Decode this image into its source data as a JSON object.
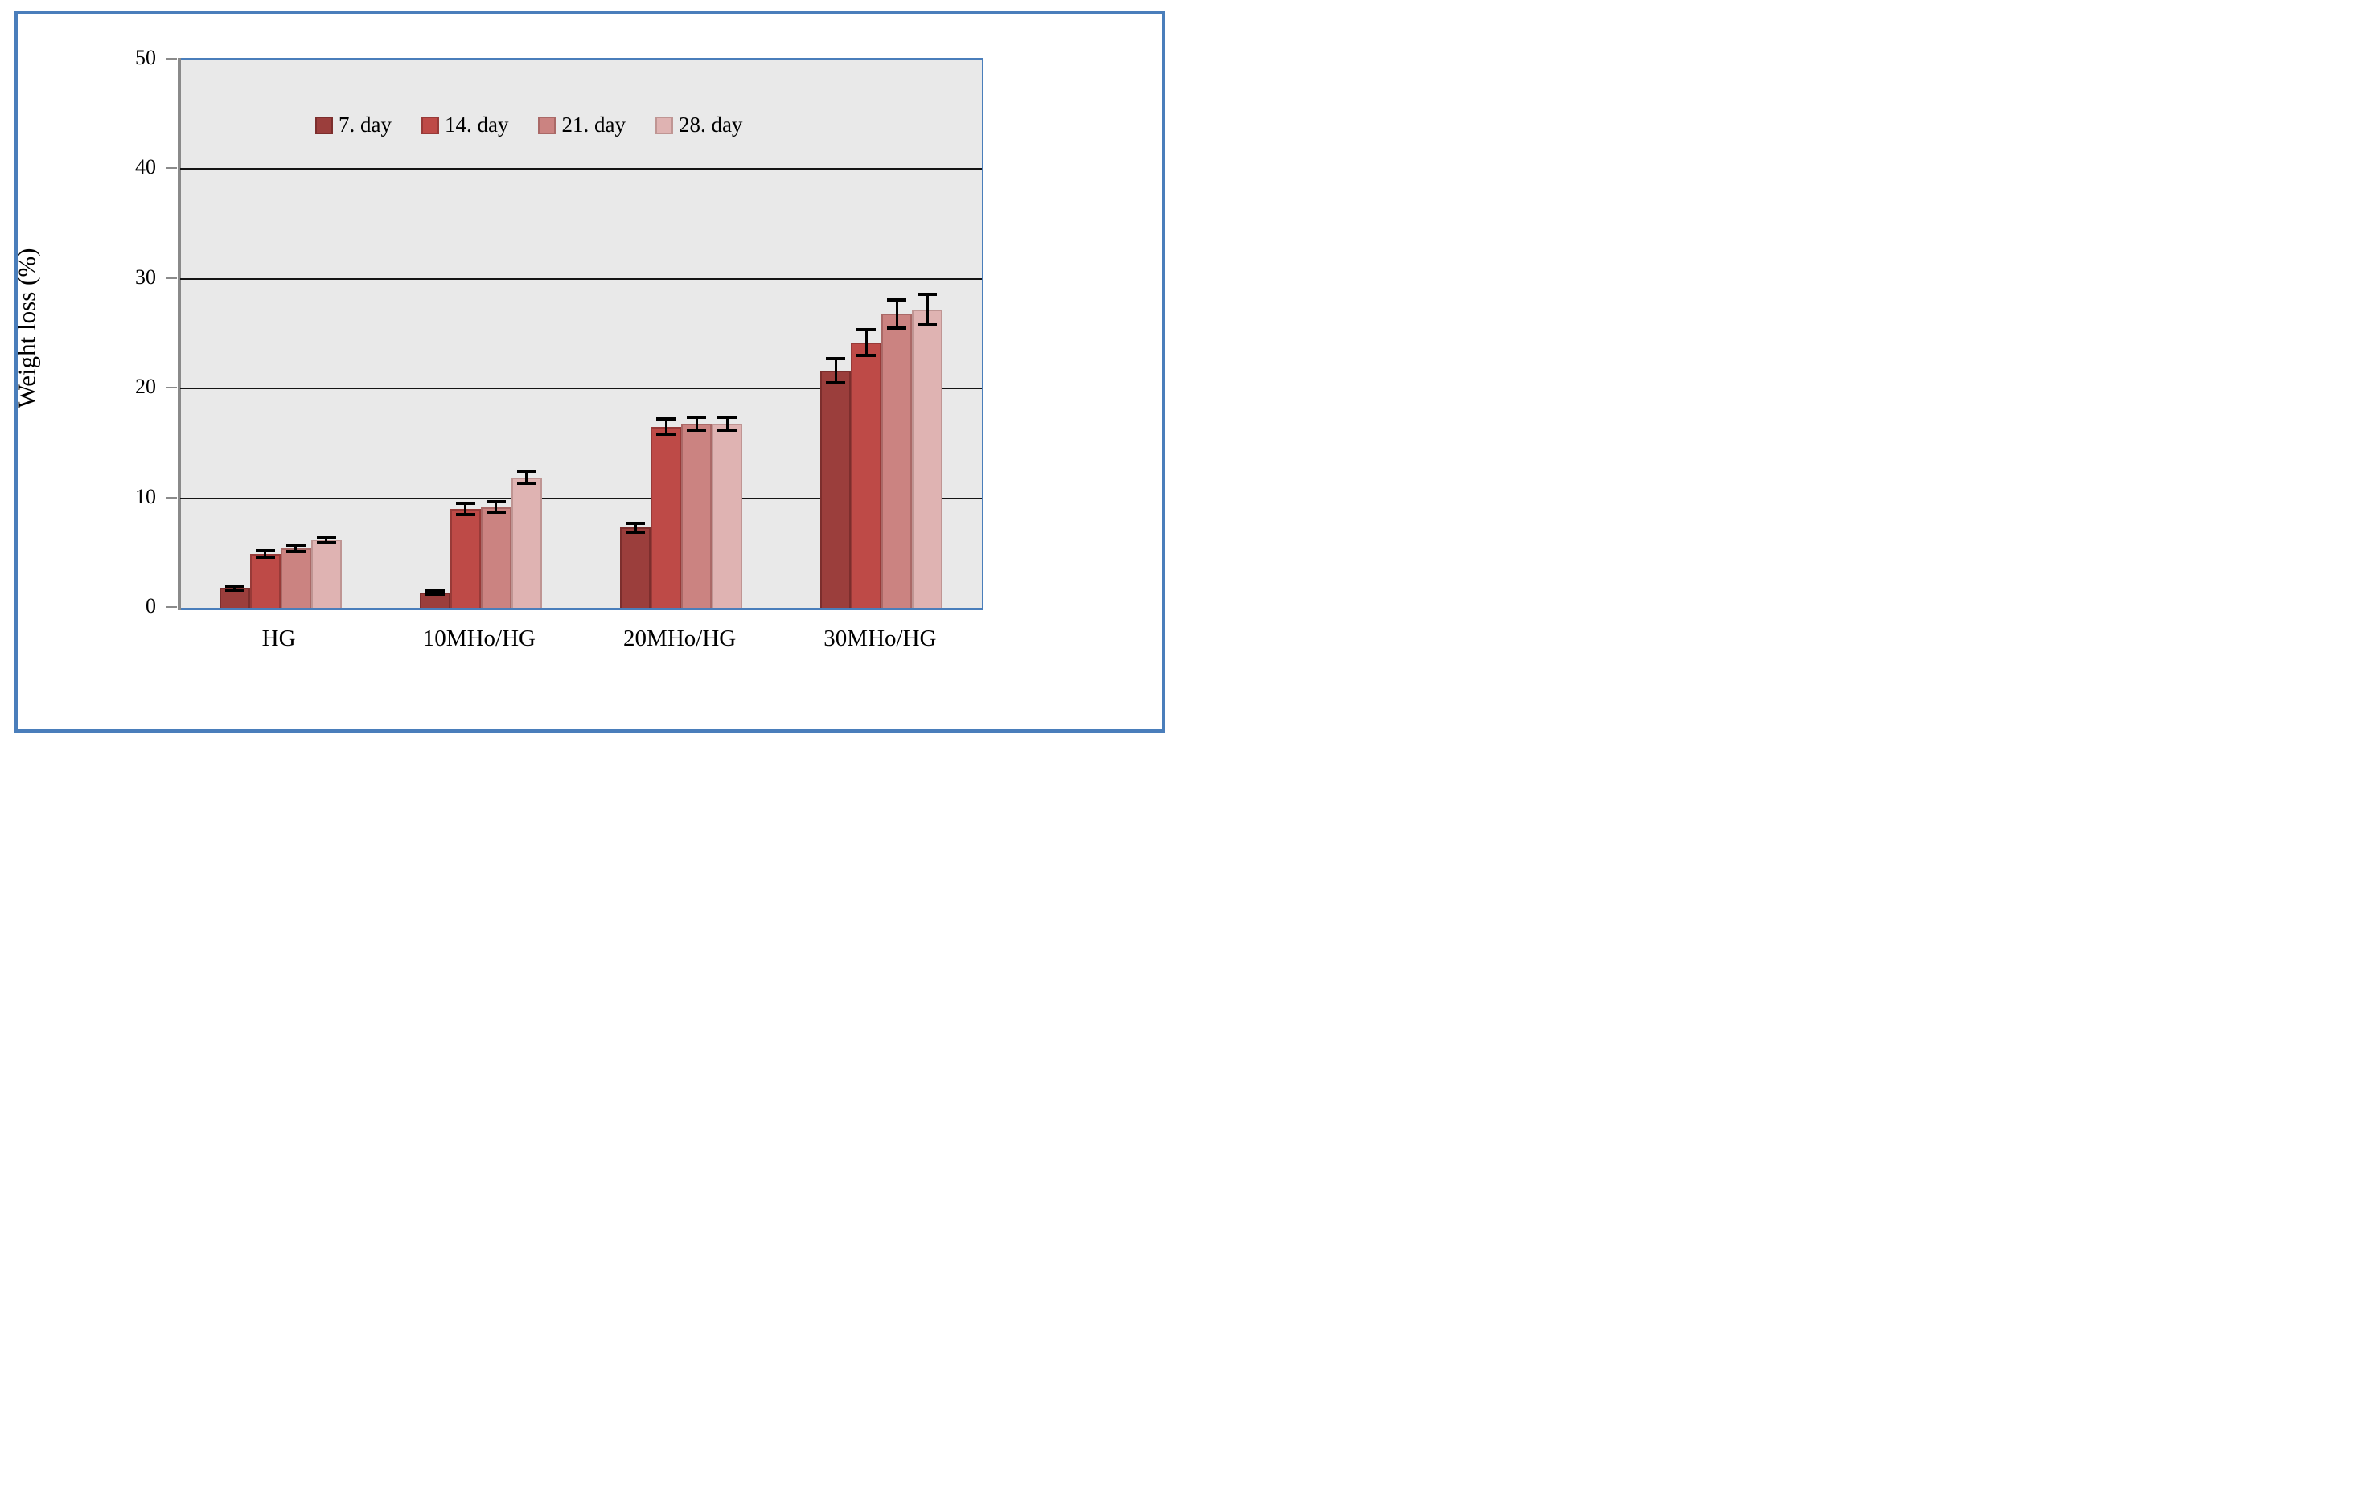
{
  "figure": {
    "ylabel": "Weight loss (%)",
    "frame_border_color": "#4a7ebb",
    "plot_background": "#e9e9e9",
    "plot_border_color": "#4a7ebb",
    "axis_color": "#8a8a8a",
    "gridline_color": "#141414",
    "error_bar_color": "#000000"
  },
  "chart_data": {
    "type": "bar",
    "title": "",
    "xlabel": "",
    "ylabel": "Weight loss (%)",
    "ylim": [
      0,
      50
    ],
    "yticks": [
      0,
      10,
      20,
      30,
      40,
      50
    ],
    "grid": "horizontal-major",
    "legend_position": "inside-top",
    "error_bars": true,
    "categories": [
      "HG",
      "10MHo/HG",
      "20MHo/HG",
      "30MHo/HG"
    ],
    "series": [
      {
        "name": "7. day",
        "color": "#9b3e3c",
        "border_color": "#7c2e2d",
        "values": [
          1.8,
          1.4,
          7.3,
          21.6
        ],
        "errors": [
          0.2,
          0.15,
          0.4,
          1.1
        ]
      },
      {
        "name": "14. day",
        "color": "#be4a47",
        "border_color": "#983a38",
        "values": [
          4.9,
          9.0,
          16.5,
          24.2
        ],
        "errors": [
          0.3,
          0.5,
          0.7,
          1.2
        ]
      },
      {
        "name": "21. day",
        "color": "#cb8381",
        "border_color": "#aa6967",
        "values": [
          5.4,
          9.2,
          16.8,
          26.8
        ],
        "errors": [
          0.3,
          0.45,
          0.6,
          1.3
        ]
      },
      {
        "name": "28. day",
        "color": "#dfb3b2",
        "border_color": "#bf9593",
        "values": [
          6.2,
          11.9,
          16.8,
          27.2
        ],
        "errors": [
          0.25,
          0.55,
          0.6,
          1.4
        ]
      }
    ]
  }
}
